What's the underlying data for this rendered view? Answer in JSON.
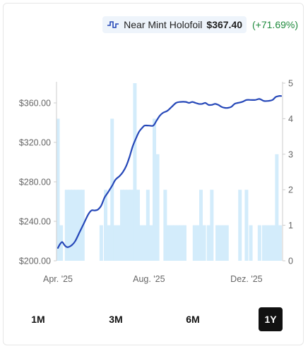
{
  "legend": {
    "icon": "price-line-icon",
    "name": "Near Mint Holofoil",
    "price": "$367.40",
    "change": "(+71.69%)",
    "change_color": "#1e8a3c"
  },
  "tabs": [
    {
      "label": "1M",
      "active": false
    },
    {
      "label": "3M",
      "active": false
    },
    {
      "label": "6M",
      "active": false
    },
    {
      "label": "1Y",
      "active": true
    }
  ],
  "colors": {
    "line": "#2547b8",
    "bar": "#d3ecfb",
    "axis_text": "#666666",
    "grid": "#cccccc"
  },
  "chart_data": {
    "type": "line",
    "x_tick_labels": [
      "Apr. '25",
      "Aug. '25",
      "Dez. '25"
    ],
    "y_left": {
      "ticks": [
        200,
        240,
        280,
        320,
        360
      ],
      "tick_labels": [
        "$200.00",
        "$240.00",
        "$280.00",
        "$320.00",
        "$360.00"
      ],
      "ylim": [
        200,
        380
      ]
    },
    "y_right": {
      "ticks": [
        0,
        1,
        2,
        3,
        4,
        5
      ],
      "ylim": [
        0,
        5
      ]
    },
    "series": [
      {
        "axis": "left",
        "values": [
          [
            0,
            213
          ],
          [
            2,
            217
          ],
          [
            4,
            219
          ],
          [
            6,
            216
          ],
          [
            8,
            214
          ],
          [
            10,
            214
          ],
          [
            13,
            216
          ],
          [
            16,
            220
          ],
          [
            20,
            229
          ],
          [
            24,
            238
          ],
          [
            28,
            247
          ],
          [
            31,
            251
          ],
          [
            34,
            251
          ],
          [
            37,
            252
          ],
          [
            40,
            256
          ],
          [
            43,
            264
          ],
          [
            46,
            269
          ],
          [
            50,
            276
          ],
          [
            53,
            282
          ],
          [
            57,
            286
          ],
          [
            60,
            290
          ],
          [
            63,
            296
          ],
          [
            66,
            305
          ],
          [
            69,
            316
          ],
          [
            72,
            324
          ],
          [
            75,
            331
          ],
          [
            78,
            335
          ],
          [
            80,
            337
          ],
          [
            84,
            337
          ],
          [
            88,
            337
          ],
          [
            91,
            342
          ],
          [
            94,
            347
          ],
          [
            97,
            350
          ],
          [
            101,
            352
          ],
          [
            105,
            356
          ],
          [
            109,
            360
          ],
          [
            113,
            361
          ],
          [
            118,
            361
          ],
          [
            121,
            360
          ],
          [
            124,
            361
          ],
          [
            127,
            360
          ],
          [
            130,
            359
          ],
          [
            133,
            359
          ],
          [
            136,
            360
          ],
          [
            139,
            358
          ],
          [
            142,
            358
          ],
          [
            145,
            359
          ],
          [
            148,
            358
          ],
          [
            151,
            356
          ],
          [
            154,
            355
          ],
          [
            157,
            355
          ],
          [
            160,
            356
          ],
          [
            163,
            359
          ],
          [
            166,
            360
          ],
          [
            170,
            361
          ],
          [
            174,
            363
          ],
          [
            178,
            363
          ],
          [
            182,
            363
          ],
          [
            186,
            364
          ],
          [
            190,
            362
          ],
          [
            194,
            362
          ],
          [
            198,
            363
          ],
          [
            201,
            366
          ],
          [
            204,
            367
          ],
          [
            206,
            367
          ]
        ]
      }
    ],
    "bars": {
      "axis": "right",
      "values": [
        [
          0,
          4
        ],
        [
          3,
          1
        ],
        [
          8,
          2
        ],
        [
          11,
          2
        ],
        [
          14,
          2
        ],
        [
          17,
          2
        ],
        [
          20,
          2
        ],
        [
          23,
          2
        ],
        [
          40,
          1
        ],
        [
          44,
          2
        ],
        [
          47,
          1
        ],
        [
          50,
          4
        ],
        [
          53,
          1
        ],
        [
          56,
          1
        ],
        [
          59,
          2
        ],
        [
          62,
          2
        ],
        [
          65,
          2
        ],
        [
          68,
          2
        ],
        [
          71,
          5
        ],
        [
          74,
          2
        ],
        [
          77,
          1
        ],
        [
          80,
          1
        ],
        [
          83,
          2
        ],
        [
          86,
          1
        ],
        [
          89,
          4
        ],
        [
          92,
          3
        ],
        [
          99,
          2
        ],
        [
          102,
          1
        ],
        [
          105,
          1
        ],
        [
          108,
          1
        ],
        [
          111,
          1
        ],
        [
          114,
          1
        ],
        [
          117,
          1
        ],
        [
          126,
          1
        ],
        [
          129,
          1
        ],
        [
          132,
          2
        ],
        [
          135,
          1
        ],
        [
          139,
          1
        ],
        [
          142,
          2
        ],
        [
          147,
          1
        ],
        [
          150,
          1
        ],
        [
          153,
          1
        ],
        [
          156,
          1
        ],
        [
          168,
          2
        ],
        [
          174,
          2
        ],
        [
          178,
          1
        ],
        [
          186,
          1
        ],
        [
          190,
          1
        ],
        [
          193,
          1
        ],
        [
          196,
          1
        ],
        [
          199,
          1
        ],
        [
          202,
          3
        ],
        [
          205,
          1
        ]
      ]
    },
    "grid": false
  }
}
